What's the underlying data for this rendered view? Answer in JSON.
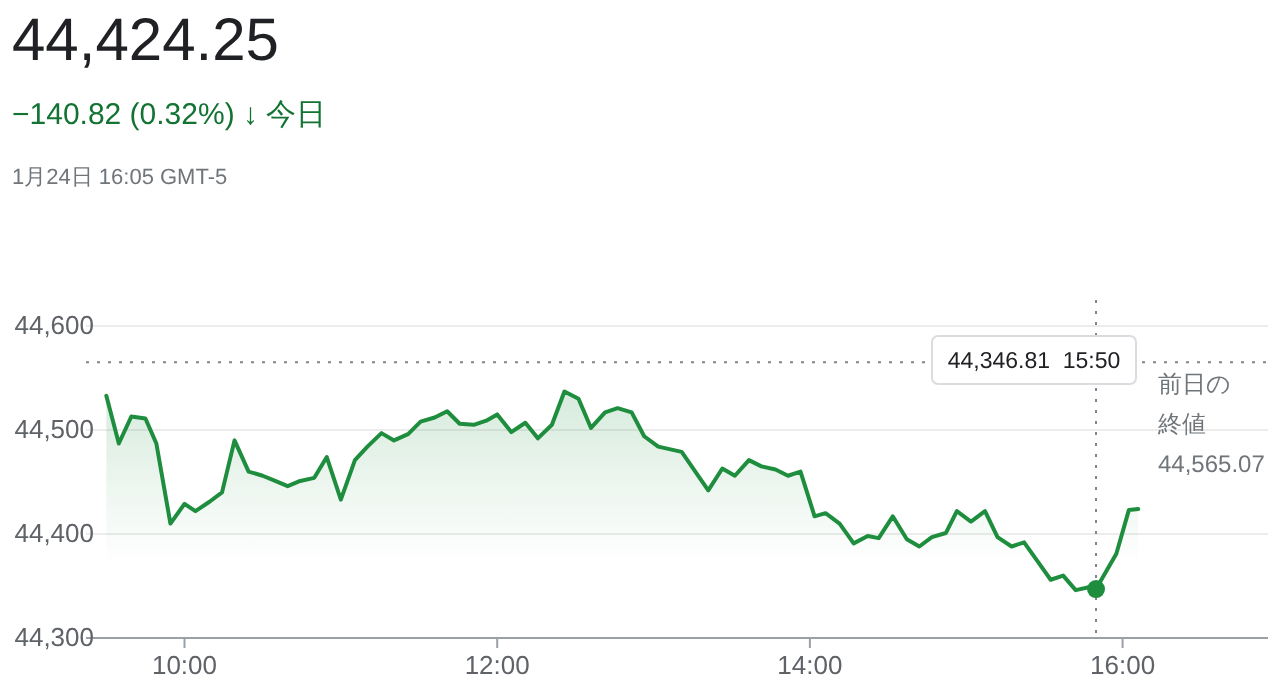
{
  "chart_data": {
    "type": "area",
    "title": "44,424.25",
    "subtitle": "−140.82 (0.32%) ↓ 今日",
    "annotations": [
      "1月24日 16:05 GMT-5",
      "44,346.81  15:50"
    ],
    "xlim": [
      9.37,
      16.93
    ],
    "xticks": [
      {
        "value": 10,
        "label": "10:00"
      },
      {
        "value": 12,
        "label": "12:00"
      },
      {
        "value": 14,
        "label": "14:00"
      },
      {
        "value": 16,
        "label": "16:00"
      }
    ],
    "ylim": [
      44300,
      44625
    ],
    "yticks": [
      {
        "value": 44300,
        "label": "44,300"
      },
      {
        "value": 44400,
        "label": "44,400"
      },
      {
        "value": 44500,
        "label": "44,500"
      },
      {
        "value": 44600,
        "label": "44,600"
      }
    ],
    "grid": "y",
    "line_style": "solid",
    "ref_lines": [
      {
        "axis": "y",
        "value": 44565.07,
        "label": "前日の終値 44,565.07",
        "line_style": "dotted",
        "color": "#80868b"
      },
      {
        "axis": "x",
        "value": 15.83,
        "label": null,
        "line_style": "dotted",
        "color": "#80868b"
      }
    ],
    "series": [
      {
        "color": "#1e8e3e",
        "x": [
          9.5,
          9.58,
          9.66,
          9.75,
          9.82,
          9.91,
          10,
          10.07,
          10.16,
          10.24,
          10.32,
          10.41,
          10.5,
          10.58,
          10.66,
          10.74,
          10.83,
          10.91,
          11,
          11.09,
          11.17,
          11.26,
          11.34,
          11.43,
          11.51,
          11.6,
          11.68,
          11.76,
          11.85,
          11.93,
          12,
          12.09,
          12.18,
          12.26,
          12.35,
          12.43,
          12.52,
          12.6,
          12.69,
          12.77,
          12.86,
          12.94,
          13.03,
          13.18,
          13.35,
          13.44,
          13.52,
          13.61,
          13.69,
          13.78,
          13.86,
          13.94,
          14.03,
          14.1,
          14.19,
          14.28,
          14.37,
          14.44,
          14.53,
          14.62,
          14.7,
          14.78,
          14.87,
          14.94,
          15.03,
          15.12,
          15.2,
          15.29,
          15.37,
          15.46,
          15.54,
          15.62,
          15.7,
          15.79,
          15.83,
          15.96,
          16.04,
          16.1
        ],
        "marker": "none",
        "values": [
          44533,
          44487,
          44513,
          44511,
          44487,
          44410,
          44429,
          44422,
          44431,
          44440,
          44490,
          44460,
          44456,
          44451,
          44446,
          44451,
          44454,
          44474,
          44433,
          44471,
          44484,
          44497,
          44490,
          44496,
          44508,
          44512,
          44518,
          44506,
          44505,
          44509,
          44515,
          44498,
          44507,
          44492,
          44505,
          44537,
          44530,
          44502,
          44517,
          44521,
          44517,
          44494,
          44484,
          44479,
          44442,
          44463,
          44456,
          44471,
          44465,
          44462,
          44456,
          44460,
          44417,
          44420,
          44410,
          44391,
          44398,
          44396,
          44417,
          44395,
          44388,
          44397,
          44401,
          44422,
          44412,
          44422,
          44397,
          44388,
          44392,
          44373,
          44356,
          44360,
          44346,
          44349,
          44347,
          44381,
          44423,
          44424
        ]
      },
      {
        "type": "scatter",
        "marker": "circle",
        "color": "#1e8e3e",
        "x": [
          15.83
        ],
        "values": [
          44347
        ]
      }
    ]
  }
}
